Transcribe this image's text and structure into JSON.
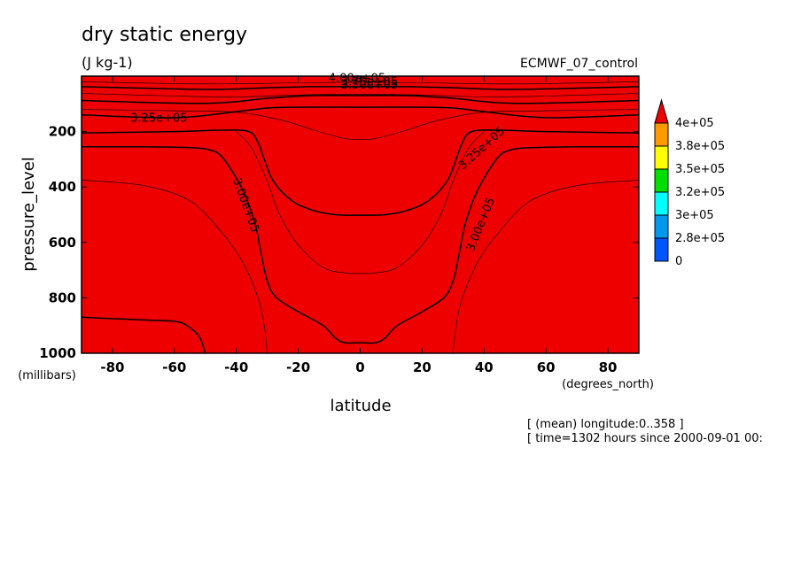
{
  "chart_data": {
    "type": "heatmap",
    "title": "dry static energy",
    "subtitle": "(J kg-1)",
    "dataset_label": "ECMWF_07_control",
    "xlabel": "latitude",
    "x_units": "(degrees_north)",
    "ylabel": "pressure_level",
    "y_units": "(millibars)",
    "xlim": [
      -90,
      90
    ],
    "ylim": [
      1000,
      0
    ],
    "x_ticks": [
      -80,
      -60,
      -40,
      -20,
      0,
      20,
      40,
      60,
      80
    ],
    "y_ticks": [
      200,
      400,
      600,
      800,
      1000
    ],
    "legend": {
      "placement": "right",
      "labels": [
        "4e+05",
        "3.8e+05",
        "3.5e+05",
        "3.2e+05",
        "3e+05",
        "2.8e+05",
        "0"
      ],
      "colors": [
        "#ee0000",
        "#ff9900",
        "#ffff00",
        "#00dd00",
        "#00ffff",
        "#0099ee",
        "#0055ff"
      ]
    },
    "contour_labels": [
      "4.00e+05",
      "3.75e+05",
      "3.50e+05",
      "3.25e+05",
      "3.00e+05"
    ],
    "bands": [
      {
        "color": "#0055ff",
        "from": 0,
        "to": 280000,
        "pressure_by_lat": [
          [
            -90,
            870
          ],
          [
            -80,
            875
          ],
          [
            -70,
            880
          ],
          [
            -60,
            885
          ],
          [
            -56,
            900
          ],
          [
            -52,
            940
          ],
          [
            -50,
            1000
          ]
        ]
      },
      {
        "color": "#0099ee",
        "from": 280000,
        "to": 300000,
        "pressure_by_lat": [
          [
            -90,
            255
          ],
          [
            -70,
            255
          ],
          [
            -55,
            258
          ],
          [
            -48,
            268
          ],
          [
            -44,
            300
          ],
          [
            -38,
            410
          ],
          [
            -34,
            530
          ],
          [
            -32,
            640
          ],
          [
            -30,
            740
          ],
          [
            -27,
            800
          ],
          [
            -20,
            850
          ],
          [
            -12,
            900
          ],
          [
            -8,
            945
          ],
          [
            -5,
            962
          ],
          [
            0,
            962
          ],
          [
            5,
            962
          ],
          [
            8,
            945
          ],
          [
            12,
            900
          ],
          [
            20,
            850
          ],
          [
            27,
            800
          ],
          [
            30,
            740
          ],
          [
            32,
            640
          ],
          [
            34,
            530
          ],
          [
            38,
            410
          ],
          [
            44,
            300
          ],
          [
            48,
            268
          ],
          [
            55,
            258
          ],
          [
            70,
            255
          ],
          [
            90,
            255
          ]
        ]
      },
      {
        "color": "#00ffff",
        "from": 300000,
        "to": 320000,
        "pressure_by_lat": [
          [
            -90,
            205
          ],
          [
            -60,
            200
          ],
          [
            -45,
            195
          ],
          [
            -36,
            200
          ],
          [
            -33,
            240
          ],
          [
            -31,
            300
          ],
          [
            -28,
            380
          ],
          [
            -22,
            450
          ],
          [
            -15,
            485
          ],
          [
            -8,
            500
          ],
          [
            0,
            502
          ],
          [
            8,
            500
          ],
          [
            15,
            485
          ],
          [
            22,
            450
          ],
          [
            28,
            380
          ],
          [
            31,
            300
          ],
          [
            33,
            240
          ],
          [
            36,
            200
          ],
          [
            45,
            195
          ],
          [
            60,
            200
          ],
          [
            90,
            205
          ]
        ]
      },
      {
        "color": "#00dd00",
        "from": 320000,
        "to": 350000,
        "pressure_by_lat": [
          [
            -90,
            140
          ],
          [
            -60,
            150
          ],
          [
            -40,
            128
          ],
          [
            -30,
            115
          ],
          [
            -20,
            112
          ],
          [
            0,
            112
          ],
          [
            20,
            112
          ],
          [
            30,
            115
          ],
          [
            40,
            128
          ],
          [
            60,
            150
          ],
          [
            90,
            140
          ]
        ]
      },
      {
        "color": "#ffff00",
        "from": 350000,
        "to": 380000,
        "pressure_by_lat": [
          [
            -90,
            88
          ],
          [
            -50,
            98
          ],
          [
            -30,
            80
          ],
          [
            -15,
            70
          ],
          [
            0,
            70
          ],
          [
            15,
            70
          ],
          [
            30,
            80
          ],
          [
            50,
            98
          ],
          [
            90,
            88
          ]
        ]
      },
      {
        "color": "#ff9900",
        "from": 380000,
        "to": 400000,
        "pressure_by_lat": [
          [
            -90,
            38
          ],
          [
            -50,
            48
          ],
          [
            -30,
            42
          ],
          [
            -15,
            38
          ],
          [
            0,
            38
          ],
          [
            15,
            38
          ],
          [
            30,
            42
          ],
          [
            50,
            48
          ],
          [
            90,
            38
          ]
        ]
      },
      {
        "color": "#ee0000",
        "from": 400000,
        "to": null,
        "pressure_by_lat": [
          [
            -90,
            0
          ],
          [
            90,
            0
          ]
        ]
      }
    ],
    "thin_contours": [
      [
        [
          -90,
          375
        ],
        [
          -70,
          395
        ],
        [
          -55,
          450
        ],
        [
          -45,
          560
        ],
        [
          -38,
          670
        ],
        [
          -33,
          800
        ],
        [
          -31,
          900
        ],
        [
          -30,
          1000
        ]
      ],
      [
        [
          30,
          1000
        ],
        [
          31,
          900
        ],
        [
          33,
          800
        ],
        [
          38,
          670
        ],
        [
          45,
          560
        ],
        [
          55,
          450
        ],
        [
          70,
          395
        ],
        [
          90,
          375
        ]
      ],
      [
        [
          -40,
          200
        ],
        [
          -35,
          260
        ],
        [
          -30,
          380
        ],
        [
          -26,
          500
        ],
        [
          -20,
          610
        ],
        [
          -12,
          690
        ],
        [
          -5,
          710
        ],
        [
          0,
          712
        ],
        [
          5,
          710
        ],
        [
          12,
          690
        ],
        [
          20,
          610
        ],
        [
          26,
          500
        ],
        [
          30,
          380
        ],
        [
          35,
          260
        ],
        [
          40,
          200
        ]
      ],
      [
        [
          -90,
          120
        ],
        [
          -60,
          125
        ],
        [
          -40,
          130
        ],
        [
          -25,
          160
        ],
        [
          -15,
          195
        ],
        [
          -5,
          225
        ],
        [
          0,
          228
        ],
        [
          5,
          225
        ],
        [
          15,
          195
        ],
        [
          25,
          160
        ],
        [
          40,
          130
        ],
        [
          60,
          125
        ],
        [
          90,
          120
        ]
      ],
      [
        [
          -90,
          62
        ],
        [
          -60,
          72
        ],
        [
          -40,
          75
        ],
        [
          -20,
          68
        ],
        [
          0,
          65
        ],
        [
          20,
          68
        ],
        [
          40,
          75
        ],
        [
          60,
          72
        ],
        [
          90,
          62
        ]
      ],
      [
        [
          -90,
          20
        ],
        [
          -50,
          28
        ],
        [
          -20,
          24
        ],
        [
          0,
          22
        ],
        [
          20,
          24
        ],
        [
          50,
          28
        ],
        [
          90,
          20
        ]
      ]
    ]
  },
  "footer": {
    "line1": "[ (mean) longitude:0..358 ]",
    "line2": "[ time=1302 hours since 2000-09-01 00:"
  }
}
